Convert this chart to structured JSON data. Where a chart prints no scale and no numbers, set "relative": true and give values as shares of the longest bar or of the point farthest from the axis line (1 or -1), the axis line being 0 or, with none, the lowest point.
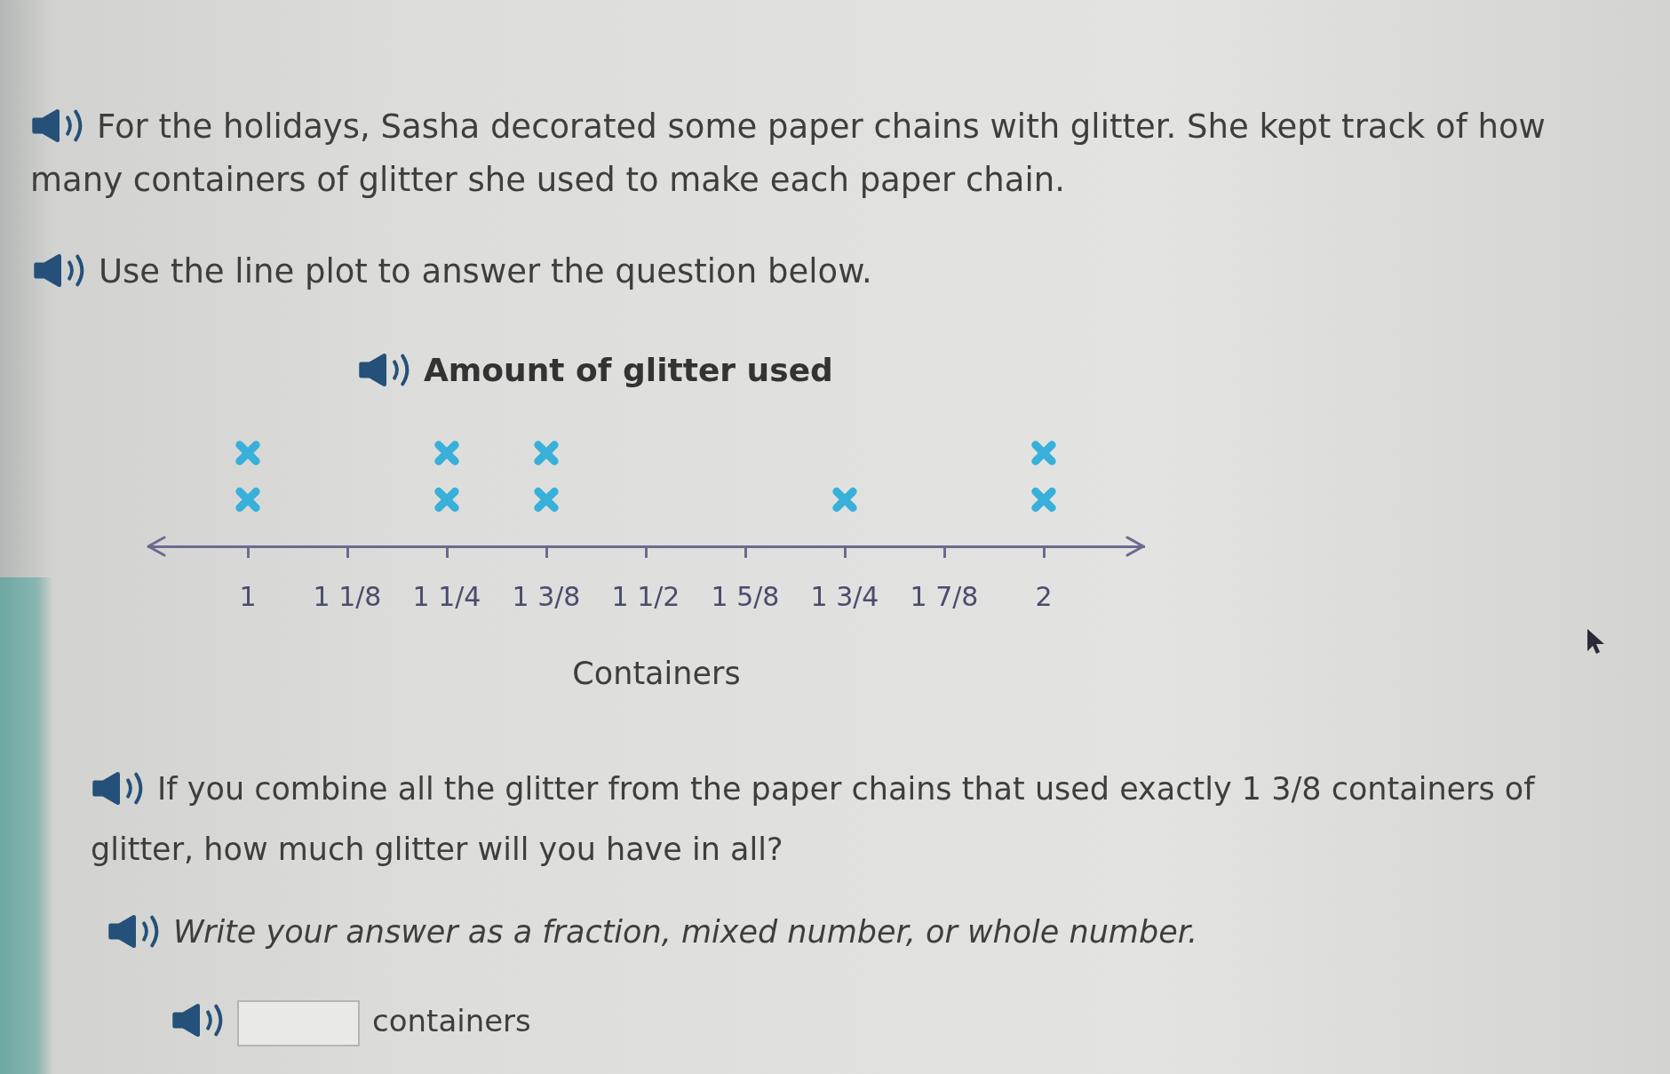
{
  "chart_data": {
    "type": "scatter",
    "title": "Amount of glitter used",
    "xlabel": "Containers",
    "x": [
      1,
      1,
      1.25,
      1.25,
      1.375,
      1.375,
      1.75,
      2,
      2
    ],
    "values": [
      0.5,
      1,
      0.5,
      1,
      0.5,
      1,
      0.5,
      0.5,
      1
    ],
    "relative": true,
    "color": "#38b0da",
    "xlim": [
      0.875,
      2.125
    ],
    "xticks": [
      1,
      {
        "value": 1.125,
        "label": "1 1/8"
      },
      {
        "value": 1.25,
        "label": "1 1/4"
      },
      {
        "value": 1.375,
        "label": "1 3/8"
      },
      {
        "value": 1.5,
        "label": "1 1/2"
      },
      {
        "value": 1.625,
        "label": "1 5/8"
      },
      {
        "value": 1.75,
        "label": "1 3/4"
      },
      {
        "value": 1.875,
        "label": "1 7/8"
      },
      2
    ],
    "marker": "cross",
    "tick_labels": "x",
    "annotations": [
      "For the holidays, Sasha decorated some paper chains with glitter. She kept track of how many containers of glitter she used to make each paper chain.",
      "Use the line plot to answer the question below.",
      "If you combine all the glitter from the paper chains that used exactly 1 3/8 containers of glitter, how much glitter will you have in all?",
      "Write your answer as a fraction, mixed number, or whole number.",
      "containers"
    ]
  }
}
